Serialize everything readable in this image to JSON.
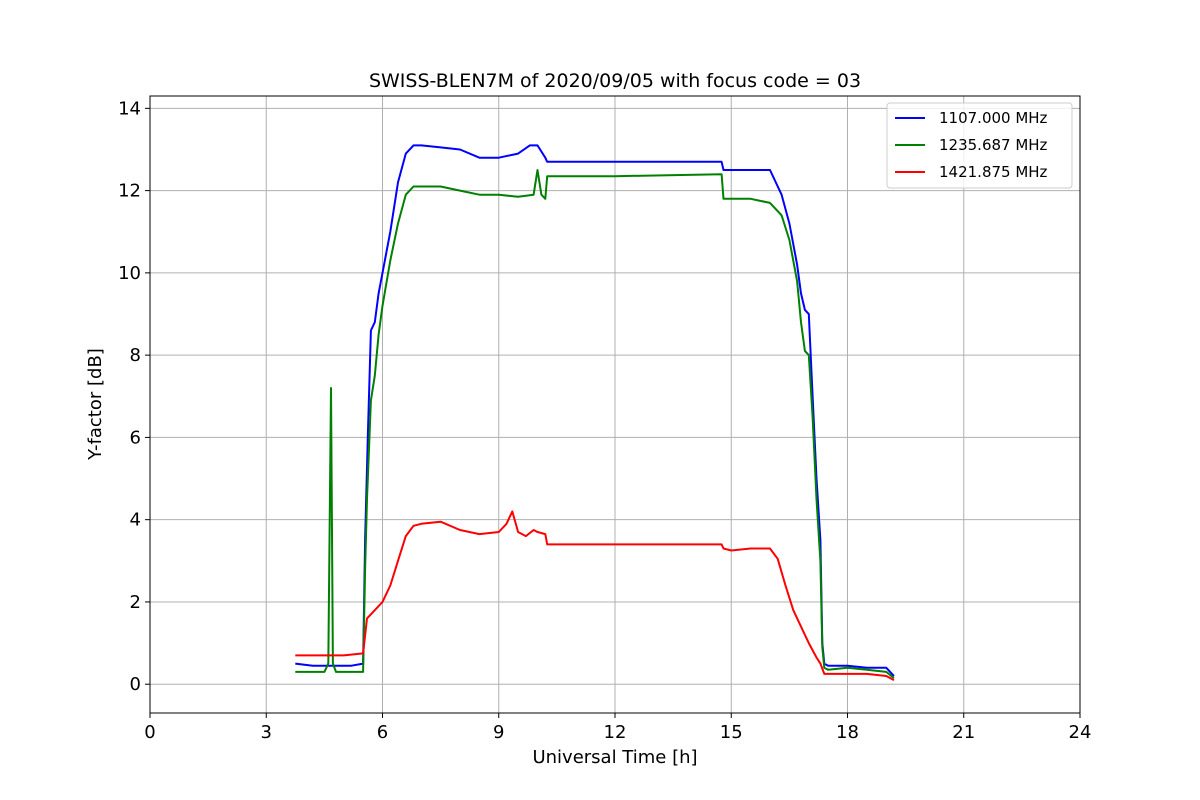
{
  "chart_data": {
    "type": "line",
    "title": "SWISS-BLEN7M of 2020/09/05 with focus code = 03",
    "xlabel": "Universal Time [h]",
    "ylabel": "Y-factor [dB]",
    "xlim": [
      0,
      24
    ],
    "ylim": [
      -0.7,
      14.3
    ],
    "xticks": [
      0,
      3,
      6,
      9,
      12,
      15,
      18,
      21,
      24
    ],
    "yticks": [
      0,
      2,
      4,
      6,
      8,
      10,
      12,
      14
    ],
    "grid": true,
    "legend_position": "top-right",
    "series": [
      {
        "name": "1107.000 MHz",
        "color": "#0000ff",
        "x": [
          3.75,
          4.2,
          4.7,
          5.2,
          5.5,
          5.55,
          5.62,
          5.7,
          5.8,
          5.9,
          6.0,
          6.2,
          6.4,
          6.6,
          6.8,
          7.0,
          7.5,
          8.0,
          8.5,
          9.0,
          9.5,
          9.8,
          10.0,
          10.2,
          10.25,
          12.0,
          14.75,
          14.8,
          15.0,
          15.5,
          16.0,
          16.3,
          16.5,
          16.7,
          16.8,
          16.9,
          17.0,
          17.1,
          17.2,
          17.3,
          17.35,
          17.4,
          17.5,
          18.0,
          18.5,
          19.0,
          19.2
        ],
        "y": [
          0.5,
          0.45,
          0.45,
          0.45,
          0.5,
          3.5,
          6.0,
          8.6,
          8.8,
          9.5,
          10.0,
          11.0,
          12.2,
          12.9,
          13.1,
          13.1,
          13.05,
          13.0,
          12.8,
          12.8,
          12.9,
          13.1,
          13.1,
          12.8,
          12.7,
          12.7,
          12.7,
          12.5,
          12.5,
          12.5,
          12.5,
          11.9,
          11.2,
          10.2,
          9.5,
          9.1,
          9.0,
          7.0,
          5.0,
          3.5,
          1.0,
          0.5,
          0.45,
          0.45,
          0.4,
          0.4,
          0.2
        ]
      },
      {
        "name": "1235.687 MHz",
        "color": "#008000",
        "x": [
          3.75,
          4.2,
          4.5,
          4.6,
          4.67,
          4.72,
          4.8,
          5.2,
          5.5,
          5.55,
          5.6,
          5.7,
          5.8,
          5.9,
          6.0,
          6.2,
          6.4,
          6.6,
          6.8,
          7.0,
          7.5,
          8.0,
          8.5,
          9.0,
          9.5,
          9.9,
          10.0,
          10.1,
          10.2,
          10.25,
          12.0,
          14.75,
          14.8,
          15.0,
          15.5,
          16.0,
          16.3,
          16.5,
          16.7,
          16.8,
          16.9,
          17.0,
          17.1,
          17.2,
          17.3,
          17.35,
          17.4,
          17.5,
          18.0,
          18.5,
          19.0,
          19.2
        ],
        "y": [
          0.3,
          0.3,
          0.3,
          0.5,
          7.2,
          0.5,
          0.3,
          0.3,
          0.3,
          2.8,
          4.5,
          6.9,
          7.5,
          8.5,
          9.2,
          10.3,
          11.2,
          11.9,
          12.1,
          12.1,
          12.1,
          12.0,
          11.9,
          11.9,
          11.85,
          11.9,
          12.5,
          11.9,
          11.8,
          12.35,
          12.35,
          12.4,
          11.8,
          11.8,
          11.8,
          11.7,
          11.4,
          10.8,
          9.8,
          8.8,
          8.1,
          8.0,
          6.5,
          4.5,
          3.0,
          0.9,
          0.4,
          0.35,
          0.4,
          0.35,
          0.3,
          0.15
        ]
      },
      {
        "name": "1421.875 MHz",
        "color": "#ff0000",
        "x": [
          3.75,
          4.5,
          5.0,
          5.5,
          5.6,
          5.8,
          6.0,
          6.2,
          6.4,
          6.6,
          6.8,
          7.0,
          7.5,
          8.0,
          8.5,
          9.0,
          9.2,
          9.35,
          9.5,
          9.7,
          9.9,
          10.0,
          10.2,
          10.25,
          12.0,
          14.75,
          14.8,
          15.0,
          15.5,
          16.0,
          16.2,
          16.4,
          16.6,
          16.8,
          17.0,
          17.2,
          17.3,
          17.4,
          17.5,
          18.0,
          18.5,
          19.0,
          19.2
        ],
        "y": [
          0.7,
          0.7,
          0.7,
          0.75,
          1.6,
          1.8,
          2.0,
          2.4,
          3.0,
          3.6,
          3.85,
          3.9,
          3.95,
          3.75,
          3.65,
          3.7,
          3.9,
          4.2,
          3.7,
          3.6,
          3.75,
          3.7,
          3.65,
          3.4,
          3.4,
          3.4,
          3.3,
          3.25,
          3.3,
          3.3,
          3.05,
          2.4,
          1.8,
          1.4,
          1.0,
          0.65,
          0.5,
          0.25,
          0.25,
          0.25,
          0.25,
          0.2,
          0.1
        ]
      }
    ]
  }
}
